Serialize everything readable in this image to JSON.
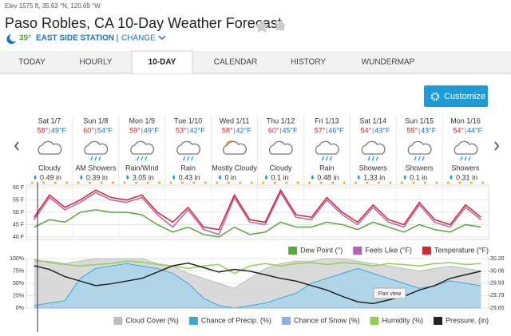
{
  "header": {
    "elevation": "Elev 1575 ft, 35.63 °N, 120.69 °W",
    "title": "Paso Robles, CA 10-Day Weather Forecast",
    "station_temp": "39°",
    "station": "EAST SIDE STATION",
    "change": "CHANGE"
  },
  "tabs": [
    "TODAY",
    "HOURLY",
    "10-DAY",
    "CALENDAR",
    "HISTORY",
    "WUNDERMAP"
  ],
  "customize": "Customize",
  "days": [
    {
      "day": "Sat 1/7",
      "high": "58°",
      "low": "49°F",
      "condition": "Cloudy",
      "precip": "0.49 in"
    },
    {
      "day": "Sun 1/8",
      "high": "60°",
      "low": "54°F",
      "condition": "AM Showers",
      "precip": "0.39 in"
    },
    {
      "day": "Mon 1/9",
      "high": "59°",
      "low": "49°F",
      "condition": "Rain/Wind",
      "precip": "3.05 in"
    },
    {
      "day": "Tue 1/10",
      "high": "53°",
      "low": "42°F",
      "condition": "Rain",
      "precip": "0.43 in"
    },
    {
      "day": "Wed 1/11",
      "high": "58°",
      "low": "42°F",
      "condition": "Mostly Cloudy",
      "precip": "0 in"
    },
    {
      "day": "Thu 1/12",
      "high": "60°",
      "low": "45°F",
      "condition": "Cloudy",
      "precip": "0.1 in"
    },
    {
      "day": "Fri 1/13",
      "high": "57°",
      "low": "46°F",
      "condition": "Rain",
      "precip": "0.48 in"
    },
    {
      "day": "Sat 1/14",
      "high": "54°",
      "low": "43°F",
      "condition": "Showers",
      "precip": "1.33 in"
    },
    {
      "day": "Sun 1/15",
      "high": "55°",
      "low": "43°F",
      "condition": "Showers",
      "precip": "0.1 in"
    },
    {
      "day": "Mon 1/16",
      "high": "54°",
      "low": "44°F",
      "condition": "Showers",
      "precip": "0.31 in"
    }
  ],
  "chart_data": [
    {
      "type": "line",
      "ylim": [
        39,
        61
      ],
      "yticks": [
        {
          "value": 60,
          "label": "60 F"
        },
        {
          "value": 55,
          "label": "55 F"
        },
        {
          "value": 50,
          "label": "50 F"
        },
        {
          "value": 45,
          "label": "45 F"
        },
        {
          "value": 40,
          "label": "40 F"
        }
      ],
      "grid": true,
      "series": [
        {
          "name": "Dew Point (°)",
          "color": "#5aa83c",
          "values": [
            44,
            47,
            46,
            50,
            51,
            50,
            50,
            49,
            45,
            42,
            44,
            41,
            40,
            44,
            41,
            42,
            46,
            44,
            44,
            46,
            45,
            43,
            46,
            44,
            42,
            45,
            43,
            42,
            45,
            44
          ]
        },
        {
          "name": "Feels Like (°F)",
          "color": "#b462b4",
          "values": [
            47,
            56,
            51,
            54,
            58,
            55,
            54,
            56,
            49,
            44,
            51,
            43,
            41,
            56,
            46,
            45,
            58,
            48,
            47,
            55,
            49,
            45,
            52,
            46,
            44,
            53,
            46,
            44,
            52,
            47
          ]
        },
        {
          "name": "Temperature (°F)",
          "color": "#e0202a",
          "values": [
            48,
            57,
            52,
            55,
            59,
            56,
            55,
            57,
            50,
            46,
            52,
            44,
            43,
            57,
            47,
            46,
            59,
            49,
            48,
            56,
            50,
            46,
            53,
            47,
            45,
            54,
            47,
            45,
            53,
            48
          ]
        }
      ]
    },
    {
      "type": "area",
      "ylim": [
        0,
        100
      ],
      "yticks": [
        {
          "value": 100,
          "label": "100%"
        },
        {
          "value": 75,
          "label": "75%"
        },
        {
          "value": 50,
          "label": "50%"
        },
        {
          "value": 25,
          "label": "25%"
        },
        {
          "value": 0,
          "label": "0%"
        }
      ],
      "y2lim": [
        29.65,
        30.2
      ],
      "y2ticks": [
        {
          "value": 30.2,
          "label": "30.20"
        },
        30.06,
        29.93,
        29.79,
        29.65
      ],
      "grid": true,
      "pan_hint": "Pan view",
      "series": [
        {
          "name": "Cloud Cover (%)",
          "color": "#bdbdbd",
          "values": [
            95,
            95,
            90,
            95,
            100,
            100,
            100,
            100,
            90,
            85,
            70,
            60,
            50,
            40,
            60,
            80,
            90,
            95,
            95,
            100,
            100,
            95,
            90,
            85,
            80,
            75,
            80,
            85,
            80,
            75
          ]
        },
        {
          "name": "Chance of Precip. (%)",
          "color": "#3aa8d8",
          "values": [
            5,
            10,
            15,
            60,
            80,
            85,
            90,
            85,
            80,
            70,
            50,
            20,
            5,
            0,
            5,
            10,
            20,
            30,
            50,
            60,
            70,
            80,
            70,
            60,
            50,
            40,
            45,
            55,
            50,
            45
          ]
        },
        {
          "name": "Chance of Snow (%)",
          "color": "#8fb0e0",
          "values": [
            0,
            0,
            0,
            0,
            0,
            0,
            0,
            0,
            0,
            0,
            0,
            0,
            0,
            0,
            0,
            0,
            0,
            0,
            0,
            0,
            0,
            0,
            0,
            0,
            0,
            0,
            0,
            0,
            0,
            0
          ]
        },
        {
          "name": "Humidity (%)",
          "color": "#8fd14f",
          "values": [
            98,
            92,
            88,
            85,
            88,
            90,
            95,
            93,
            88,
            85,
            80,
            85,
            88,
            70,
            85,
            90,
            85,
            90,
            92,
            88,
            92,
            90,
            85,
            90,
            88,
            85,
            90,
            92,
            88,
            90
          ]
        },
        {
          "name": "Pressure. (in)",
          "color": "#222222",
          "axis": "y2",
          "values": [
            30.12,
            30.08,
            30.0,
            29.95,
            29.9,
            29.92,
            29.95,
            29.98,
            30.05,
            30.12,
            30.15,
            30.1,
            30.05,
            30.08,
            30.06,
            30.02,
            29.98,
            29.95,
            29.9,
            29.85,
            29.78,
            29.72,
            29.7,
            29.74,
            29.78,
            29.85,
            29.9,
            29.98,
            30.02,
            30.06
          ]
        }
      ]
    }
  ]
}
